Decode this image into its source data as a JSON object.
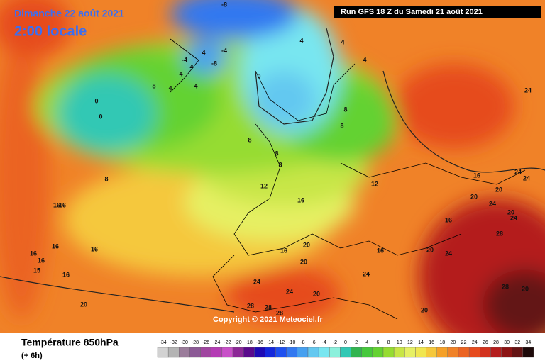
{
  "header": {
    "date": "Dimanche 22 août 2021",
    "time": "2:00 locale",
    "run": "Run GFS 18 Z du Samedi 21 août 2021"
  },
  "map": {
    "copyright": "Copyright © 2021 Meteociel.fr",
    "contour_labels": [
      "-8",
      "-4",
      "-8",
      "-4",
      "4",
      "4",
      "4",
      "4",
      "8",
      "4",
      "0",
      "0",
      "0",
      "4",
      "4",
      "4",
      "8",
      "8",
      "8",
      "8",
      "8",
      "8",
      "12",
      "12",
      "16",
      "16",
      "16",
      "16",
      "16",
      "16",
      "15",
      "16",
      "16",
      "16",
      "20",
      "20",
      "20",
      "20",
      "20",
      "24",
      "24",
      "24",
      "24",
      "28",
      "28",
      "20",
      "16",
      "20",
      "20",
      "24",
      "24",
      "24",
      "28",
      "28",
      "28",
      "20",
      "16",
      "16",
      "24",
      "24",
      "20"
    ]
  },
  "footer": {
    "title": "Température 850hPa",
    "lead": "(+ 6h)"
  },
  "scale": {
    "values": [
      -34,
      -32,
      -30,
      -28,
      -26,
      -24,
      -22,
      -20,
      -18,
      -16,
      -14,
      -12,
      -10,
      -8,
      -6,
      -4,
      -2,
      0,
      2,
      4,
      6,
      8,
      10,
      12,
      14,
      16,
      18,
      20,
      22,
      24,
      26,
      28,
      30,
      32,
      34
    ],
    "colors": [
      "#d2d2d2",
      "#b4b4b4",
      "#9b7d9b",
      "#8c5a96",
      "#a046a0",
      "#b43cb4",
      "#c850c8",
      "#8c2896",
      "#5a0a8c",
      "#1e0ab4",
      "#1428dc",
      "#1e50f0",
      "#3278f0",
      "#46a0f0",
      "#64c8f0",
      "#78e6f0",
      "#8cf0dc",
      "#32c8b4",
      "#32b450",
      "#46c83c",
      "#64d232",
      "#96dc32",
      "#c8e646",
      "#e6f064",
      "#f0e650",
      "#f5c83c",
      "#f5a028",
      "#f08228",
      "#eb6423",
      "#e64b1e",
      "#d2321e",
      "#b41e1e",
      "#8c1414",
      "#641414",
      "#1e0a0a"
    ]
  }
}
